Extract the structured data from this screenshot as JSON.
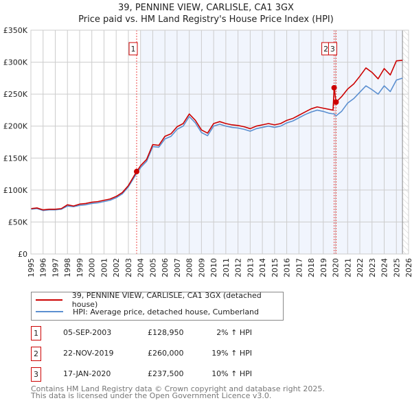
{
  "title_line1": "39, PENNINE VIEW, CARLISLE, CA1 3GX",
  "title_line2": "Price paid vs. HM Land Registry's House Price Index (HPI)",
  "chart_data": {
    "type": "line",
    "title": "39, PENNINE VIEW, CARLISLE, CA1 3GX — Price paid vs. HM Land Registry's House Price Index (HPI)",
    "xlim": [
      1995,
      2026
    ],
    "ylim": [
      0,
      350000
    ],
    "x_ticks": [
      "1995",
      "1996",
      "1997",
      "1998",
      "1999",
      "2000",
      "2001",
      "2002",
      "2003",
      "2004",
      "2005",
      "2006",
      "2007",
      "2008",
      "2009",
      "2010",
      "2011",
      "2012",
      "2013",
      "2014",
      "2015",
      "2016",
      "2017",
      "2018",
      "2019",
      "2020",
      "2021",
      "2022",
      "2023",
      "2024",
      "2025",
      "2026"
    ],
    "y_ticks": [
      {
        "v": 0,
        "label": "£0"
      },
      {
        "v": 50000,
        "label": "£50K"
      },
      {
        "v": 100000,
        "label": "£100K"
      },
      {
        "v": 150000,
        "label": "£150K"
      },
      {
        "v": 200000,
        "label": "£200K"
      },
      {
        "v": 250000,
        "label": "£250K"
      },
      {
        "v": 300000,
        "label": "£300K"
      },
      {
        "v": 350000,
        "label": "£350K"
      }
    ],
    "grid": true,
    "shaded_from": 2004.0,
    "hatched_from": 2025.5,
    "series": [
      {
        "name": "39, PENNINE VIEW, CARLISLE, CA1 3GX (detached house)",
        "color": "#cc0000",
        "points": [
          [
            1995,
            71
          ],
          [
            1995.5,
            72
          ],
          [
            1996,
            69
          ],
          [
            1996.5,
            70
          ],
          [
            1997,
            70
          ],
          [
            1997.5,
            71
          ],
          [
            1998,
            77
          ],
          [
            1998.5,
            75
          ],
          [
            1999,
            78
          ],
          [
            1999.5,
            79
          ],
          [
            2000,
            81
          ],
          [
            2000.5,
            82
          ],
          [
            2001,
            84
          ],
          [
            2001.5,
            86
          ],
          [
            2002,
            90
          ],
          [
            2002.5,
            96
          ],
          [
            2003,
            107
          ],
          [
            2003.68,
            128.95
          ],
          [
            2004,
            138
          ],
          [
            2004.5,
            148
          ],
          [
            2005,
            171
          ],
          [
            2005.5,
            170
          ],
          [
            2006,
            184
          ],
          [
            2006.5,
            188
          ],
          [
            2007,
            199
          ],
          [
            2007.5,
            204
          ],
          [
            2008,
            219
          ],
          [
            2008.5,
            209
          ],
          [
            2009,
            194
          ],
          [
            2009.5,
            189
          ],
          [
            2010,
            204
          ],
          [
            2010.5,
            207
          ],
          [
            2011,
            204
          ],
          [
            2011.5,
            202
          ],
          [
            2012,
            201
          ],
          [
            2012.5,
            199
          ],
          [
            2013,
            196
          ],
          [
            2013.5,
            200
          ],
          [
            2014,
            202
          ],
          [
            2014.5,
            204
          ],
          [
            2015,
            202
          ],
          [
            2015.5,
            204
          ],
          [
            2016,
            209
          ],
          [
            2016.5,
            212
          ],
          [
            2017,
            217
          ],
          [
            2017.5,
            222
          ],
          [
            2018,
            227
          ],
          [
            2018.5,
            230
          ],
          [
            2019,
            228
          ],
          [
            2019.8,
            225
          ],
          [
            2019.89,
            260
          ],
          [
            2020.05,
            237.5
          ],
          [
            2020.5,
            246
          ],
          [
            2021,
            258
          ],
          [
            2021.5,
            266
          ],
          [
            2022,
            278
          ],
          [
            2022.5,
            291
          ],
          [
            2023,
            284
          ],
          [
            2023.5,
            274
          ],
          [
            2024,
            290
          ],
          [
            2024.5,
            280
          ],
          [
            2025,
            302
          ],
          [
            2025.5,
            303
          ]
        ]
      },
      {
        "name": "HPI: Average price, detached house, Cumberland",
        "color": "#5b8fd0",
        "points": [
          [
            1995,
            70
          ],
          [
            1995.5,
            71
          ],
          [
            1996,
            68
          ],
          [
            1996.5,
            69
          ],
          [
            1997,
            69
          ],
          [
            1997.5,
            70
          ],
          [
            1998,
            75
          ],
          [
            1998.5,
            74
          ],
          [
            1999,
            76
          ],
          [
            1999.5,
            77
          ],
          [
            2000,
            79
          ],
          [
            2000.5,
            80
          ],
          [
            2001,
            82
          ],
          [
            2001.5,
            84
          ],
          [
            2002,
            88
          ],
          [
            2002.5,
            94
          ],
          [
            2003,
            105
          ],
          [
            2003.68,
            126
          ],
          [
            2004,
            135
          ],
          [
            2004.5,
            145
          ],
          [
            2005,
            168
          ],
          [
            2005.5,
            167
          ],
          [
            2006,
            180
          ],
          [
            2006.5,
            184
          ],
          [
            2007,
            195
          ],
          [
            2007.5,
            200
          ],
          [
            2008,
            215
          ],
          [
            2008.5,
            205
          ],
          [
            2009,
            190
          ],
          [
            2009.5,
            185
          ],
          [
            2010,
            200
          ],
          [
            2010.5,
            203
          ],
          [
            2011,
            200
          ],
          [
            2011.5,
            198
          ],
          [
            2012,
            197
          ],
          [
            2012.5,
            195
          ],
          [
            2013,
            192
          ],
          [
            2013.5,
            196
          ],
          [
            2014,
            198
          ],
          [
            2014.5,
            200
          ],
          [
            2015,
            198
          ],
          [
            2015.5,
            200
          ],
          [
            2016,
            205
          ],
          [
            2016.5,
            208
          ],
          [
            2017,
            213
          ],
          [
            2017.5,
            218
          ],
          [
            2018,
            222
          ],
          [
            2018.5,
            225
          ],
          [
            2019,
            223
          ],
          [
            2019.5,
            220
          ],
          [
            2019.89,
            219
          ],
          [
            2020.05,
            216
          ],
          [
            2020.5,
            223
          ],
          [
            2021,
            236
          ],
          [
            2021.5,
            243
          ],
          [
            2022,
            253
          ],
          [
            2022.5,
            263
          ],
          [
            2023,
            257
          ],
          [
            2023.5,
            250
          ],
          [
            2024,
            263
          ],
          [
            2024.5,
            254
          ],
          [
            2025,
            272
          ],
          [
            2025.5,
            275
          ]
        ]
      }
    ],
    "sales": [
      {
        "id": "1",
        "x": 2003.68,
        "price": 128950
      },
      {
        "id": "2",
        "x": 2019.89,
        "price": 260000
      },
      {
        "id": "3",
        "x": 2020.05,
        "price": 237500
      }
    ]
  },
  "legend": [
    {
      "label": "39, PENNINE VIEW, CARLISLE, CA1 3GX (detached house)",
      "color": "#cc0000"
    },
    {
      "label": "HPI: Average price, detached house, Cumberland",
      "color": "#5b8fd0"
    }
  ],
  "transactions": [
    {
      "id": "1",
      "date": "05-SEP-2003",
      "price": "£128,950",
      "hpi": "2% ↑ HPI"
    },
    {
      "id": "2",
      "date": "22-NOV-2019",
      "price": "£260,000",
      "hpi": "19% ↑ HPI"
    },
    {
      "id": "3",
      "date": "17-JAN-2020",
      "price": "£237,500",
      "hpi": "10% ↑ HPI"
    }
  ],
  "footer_line1": "Contains HM Land Registry data © Crown copyright and database right 2025.",
  "footer_line2": "This data is licensed under the Open Government Licence v3.0."
}
